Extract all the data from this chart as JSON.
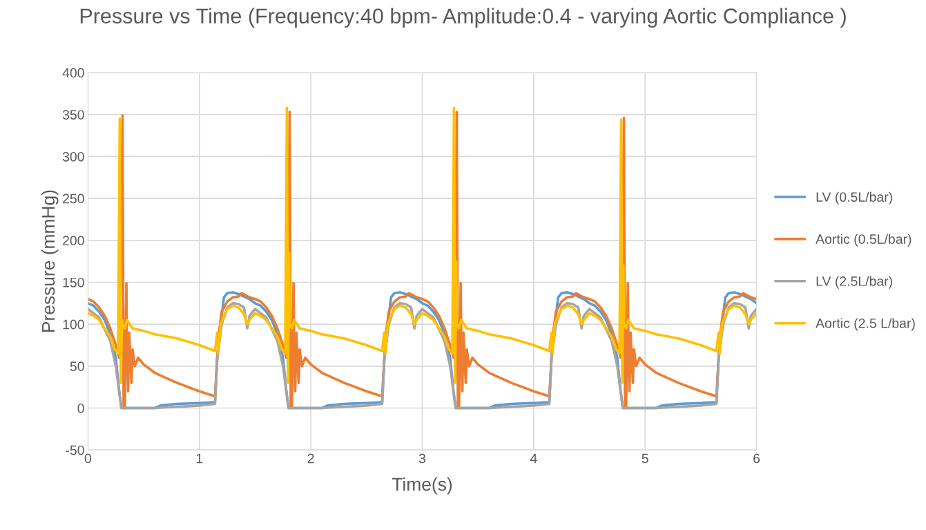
{
  "chart_data": {
    "type": "line",
    "title": "Pressure vs Time (Frequency:40 bpm- Amplitude:0.4 - varying Aortic Compliance )",
    "xlabel": "Time(s)",
    "ylabel": "Pressure (mmHg)",
    "xlim": [
      0,
      6
    ],
    "xticks": [
      0,
      1,
      2,
      3,
      4,
      5,
      6
    ],
    "ylim": [
      -50,
      400
    ],
    "yticks": [
      -50,
      0,
      50,
      100,
      150,
      200,
      250,
      300,
      350,
      400
    ],
    "grid": true,
    "legend": "right",
    "marker": "none",
    "line_style": "solid",
    "series": [
      {
        "name": "LV (0.5L/bar)",
        "color": "#5b9bd5",
        "x": [
          0,
          0.05,
          0.1,
          0.15,
          0.2,
          0.25,
          0.28,
          0.3,
          0.45,
          0.6,
          0.65,
          0.8,
          1,
          1.14,
          1.16,
          1.18,
          1.2,
          1.22,
          1.25,
          1.3,
          1.35,
          1.4,
          1.45,
          1.5,
          1.55,
          1.6,
          1.65,
          1.7,
          1.75,
          1.78,
          1.8,
          1.95,
          2.1,
          2.15,
          2.3,
          2.5,
          2.64,
          2.66,
          2.68,
          2.7,
          2.72,
          2.75,
          2.8,
          2.85,
          2.9,
          2.95,
          3,
          3.05,
          3.1,
          3.15,
          3.2,
          3.25,
          3.28,
          3.3,
          3.45,
          3.6,
          3.65,
          3.8,
          4,
          4.14,
          4.16,
          4.18,
          4.2,
          4.22,
          4.25,
          4.3,
          4.35,
          4.4,
          4.45,
          4.5,
          4.55,
          4.6,
          4.65,
          4.7,
          4.75,
          4.78,
          4.8,
          4.95,
          5.1,
          5.15,
          5.3,
          5.5,
          5.64,
          5.66,
          5.68,
          5.7,
          5.72,
          5.75,
          5.8,
          5.85,
          5.9,
          5.95,
          6
        ],
        "values": [
          125,
          122,
          115,
          105,
          88,
          60,
          20,
          0,
          0,
          0,
          3,
          5,
          6,
          7,
          60,
          90,
          110,
          132,
          137,
          138,
          136,
          133,
          130,
          125,
          122,
          115,
          105,
          88,
          60,
          20,
          0,
          0,
          0,
          3,
          5,
          6,
          7,
          60,
          90,
          110,
          132,
          137,
          138,
          136,
          133,
          130,
          125,
          122,
          115,
          105,
          88,
          60,
          20,
          0,
          0,
          0,
          3,
          5,
          6,
          7,
          60,
          90,
          110,
          132,
          137,
          138,
          136,
          133,
          130,
          125,
          122,
          115,
          105,
          88,
          60,
          20,
          0,
          0,
          0,
          3,
          5,
          6,
          7,
          60,
          90,
          110,
          132,
          137,
          138,
          136,
          133,
          130,
          125
        ]
      },
      {
        "name": "Aortic (0.5L/bar)",
        "color": "#ed7d31",
        "x": [
          0,
          0.05,
          0.1,
          0.15,
          0.2,
          0.25,
          0.28,
          0.3,
          0.31,
          0.32,
          0.33,
          0.34,
          0.345,
          0.35,
          0.36,
          0.37,
          0.38,
          0.39,
          0.4,
          0.42,
          0.45,
          0.5,
          0.6,
          0.8,
          1,
          1.14,
          1.16,
          1.18,
          1.2,
          1.25,
          1.3,
          1.35,
          1.38,
          1.45,
          1.5,
          1.55,
          1.6,
          1.65,
          1.7,
          1.75,
          1.78,
          1.8,
          1.81,
          1.82,
          1.83,
          1.84,
          1.845,
          1.85,
          1.86,
          1.87,
          1.88,
          1.89,
          1.9,
          1.92,
          1.95,
          2,
          2.1,
          2.3,
          2.5,
          2.64,
          2.66,
          2.68,
          2.7,
          2.75,
          2.8,
          2.85,
          2.88,
          2.95,
          3,
          3.05,
          3.1,
          3.15,
          3.2,
          3.25,
          3.28,
          3.3,
          3.31,
          3.32,
          3.33,
          3.34,
          3.345,
          3.35,
          3.36,
          3.37,
          3.38,
          3.39,
          3.4,
          3.42,
          3.45,
          3.5,
          3.6,
          3.8,
          4,
          4.14,
          4.16,
          4.18,
          4.2,
          4.25,
          4.3,
          4.35,
          4.38,
          4.45,
          4.5,
          4.55,
          4.6,
          4.65,
          4.7,
          4.75,
          4.78,
          4.8,
          4.81,
          4.82,
          4.83,
          4.84,
          4.845,
          4.85,
          4.86,
          4.87,
          4.88,
          4.89,
          4.9,
          4.92,
          4.95,
          5,
          5.1,
          5.3,
          5.5,
          5.64,
          5.66,
          5.68,
          5.7,
          5.75,
          5.8,
          5.85,
          5.88,
          5.95,
          6
        ],
        "values": [
          130,
          127,
          120,
          110,
          95,
          75,
          60,
          200,
          349,
          0,
          0,
          100,
          149,
          80,
          20,
          90,
          60,
          30,
          70,
          50,
          60,
          52,
          42,
          30,
          20,
          14,
          60,
          95,
          115,
          127,
          132,
          133,
          137,
          132,
          130,
          127,
          120,
          110,
          95,
          75,
          60,
          200,
          353,
          0,
          0,
          100,
          149,
          80,
          20,
          90,
          60,
          30,
          70,
          50,
          60,
          52,
          42,
          30,
          20,
          14,
          60,
          95,
          115,
          127,
          132,
          133,
          137,
          132,
          130,
          127,
          120,
          110,
          95,
          75,
          60,
          200,
          353,
          0,
          0,
          100,
          149,
          80,
          20,
          90,
          60,
          30,
          70,
          50,
          60,
          52,
          42,
          30,
          20,
          14,
          60,
          95,
          115,
          127,
          132,
          133,
          137,
          132,
          130,
          127,
          120,
          110,
          95,
          75,
          60,
          200,
          346,
          0,
          0,
          100,
          149,
          80,
          20,
          90,
          60,
          30,
          70,
          50,
          60,
          52,
          42,
          30,
          20,
          14,
          60,
          95,
          115,
          127,
          132,
          133,
          137,
          132,
          130
        ]
      },
      {
        "name": "LV (2.5L/bar)",
        "color": "#a5a5a5",
        "x": [
          0,
          0.1,
          0.2,
          0.25,
          0.3,
          0.6,
          1,
          1.14,
          1.16,
          1.2,
          1.25,
          1.3,
          1.35,
          1.4,
          1.43,
          1.45,
          1.48,
          1.5,
          1.6,
          1.7,
          1.75,
          1.8,
          2.1,
          2.5,
          2.64,
          2.66,
          2.7,
          2.75,
          2.8,
          2.85,
          2.9,
          2.93,
          2.95,
          2.98,
          3,
          3.1,
          3.2,
          3.25,
          3.3,
          3.6,
          4,
          4.14,
          4.16,
          4.2,
          4.25,
          4.3,
          4.35,
          4.4,
          4.43,
          4.45,
          4.48,
          4.5,
          4.6,
          4.7,
          4.75,
          4.8,
          5.1,
          5.5,
          5.64,
          5.66,
          5.7,
          5.75,
          5.8,
          5.85,
          5.9,
          5.93,
          5.95,
          5.98,
          6
        ],
        "values": [
          118,
          108,
          80,
          50,
          0,
          0,
          3,
          5,
          60,
          100,
          120,
          125,
          124,
          120,
          95,
          110,
          115,
          118,
          108,
          80,
          50,
          0,
          0,
          3,
          5,
          60,
          100,
          120,
          125,
          124,
          120,
          95,
          110,
          115,
          118,
          108,
          80,
          50,
          0,
          0,
          3,
          5,
          60,
          100,
          120,
          125,
          124,
          120,
          95,
          110,
          115,
          118,
          108,
          80,
          50,
          0,
          0,
          3,
          5,
          60,
          100,
          120,
          125,
          124,
          120,
          95,
          110,
          115,
          118
        ]
      },
      {
        "name": "Aortic (2.5 L/bar)",
        "color": "#ffc000",
        "x": [
          0,
          0.05,
          0.1,
          0.15,
          0.2,
          0.24,
          0.27,
          0.285,
          0.295,
          0.305,
          0.31,
          0.33,
          0.35,
          0.4,
          0.5,
          0.6,
          0.8,
          1,
          1.1,
          1.14,
          1.15,
          1.16,
          1.17,
          1.19,
          1.22,
          1.25,
          1.3,
          1.35,
          1.4,
          1.43,
          1.45,
          1.5,
          1.55,
          1.6,
          1.65,
          1.7,
          1.74,
          1.77,
          1.785,
          1.795,
          1.805,
          1.81,
          1.83,
          1.85,
          1.9,
          2,
          2.1,
          2.3,
          2.5,
          2.6,
          2.64,
          2.65,
          2.66,
          2.67,
          2.69,
          2.72,
          2.75,
          2.8,
          2.85,
          2.9,
          2.93,
          2.95,
          3,
          3.05,
          3.1,
          3.15,
          3.2,
          3.24,
          3.27,
          3.285,
          3.295,
          3.305,
          3.31,
          3.33,
          3.35,
          3.4,
          3.5,
          3.6,
          3.8,
          4,
          4.1,
          4.14,
          4.15,
          4.16,
          4.17,
          4.19,
          4.22,
          4.25,
          4.3,
          4.35,
          4.4,
          4.43,
          4.45,
          4.5,
          4.55,
          4.6,
          4.65,
          4.7,
          4.74,
          4.77,
          4.785,
          4.795,
          4.805,
          4.81,
          4.83,
          4.85,
          4.9,
          5,
          5.1,
          5.3,
          5.5,
          5.6,
          5.64,
          5.65,
          5.66,
          5.67,
          5.69,
          5.72,
          5.75,
          5.8,
          5.85,
          5.9,
          5.93,
          5.95,
          6
        ],
        "values": [
          113,
          110,
          105,
          95,
          85,
          70,
          65,
          345,
          30,
          105,
          100,
          95,
          105,
          95,
          92,
          88,
          83,
          75,
          70,
          68,
          80,
          90,
          65,
          100,
          110,
          118,
          122,
          120,
          112,
          100,
          105,
          113,
          110,
          105,
          95,
          85,
          70,
          65,
          358,
          30,
          185,
          100,
          95,
          105,
          95,
          92,
          88,
          83,
          75,
          70,
          68,
          80,
          90,
          65,
          100,
          110,
          118,
          122,
          120,
          112,
          100,
          105,
          113,
          110,
          105,
          95,
          85,
          70,
          65,
          358,
          30,
          175,
          100,
          95,
          105,
          95,
          92,
          88,
          83,
          75,
          70,
          68,
          80,
          90,
          65,
          100,
          110,
          118,
          122,
          120,
          112,
          100,
          105,
          113,
          110,
          105,
          95,
          85,
          70,
          65,
          344,
          30,
          170,
          100,
          95,
          105,
          95,
          92,
          88,
          83,
          75,
          70,
          68,
          80,
          90,
          65,
          100,
          110,
          118,
          122,
          120,
          112,
          100,
          105,
          113
        ]
      }
    ]
  }
}
